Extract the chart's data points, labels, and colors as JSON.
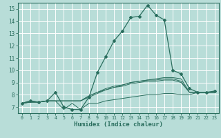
{
  "xlabel": "Humidex (Indice chaleur)",
  "bg_color": "#b8ddd8",
  "grid_color": "#ffffff",
  "line_color": "#2a6e5e",
  "xlim": [
    -0.5,
    23.5
  ],
  "ylim": [
    6.5,
    15.5
  ],
  "yticks": [
    7,
    8,
    9,
    10,
    11,
    12,
    13,
    14,
    15
  ],
  "xticks": [
    0,
    1,
    2,
    3,
    4,
    5,
    6,
    7,
    8,
    9,
    10,
    11,
    12,
    13,
    14,
    15,
    16,
    17,
    18,
    19,
    20,
    21,
    22,
    23
  ],
  "series_main": [
    7.3,
    7.5,
    7.4,
    7.5,
    8.2,
    7.0,
    6.8,
    6.8,
    7.8,
    9.8,
    11.1,
    12.4,
    13.2,
    14.3,
    14.4,
    15.3,
    14.5,
    14.1,
    10.0,
    9.7,
    8.5,
    8.2,
    8.2,
    8.3
  ],
  "series_a": [
    7.3,
    7.4,
    7.4,
    7.5,
    7.5,
    7.5,
    7.5,
    7.5,
    7.8,
    8.1,
    8.4,
    8.6,
    8.8,
    9.0,
    9.1,
    9.2,
    9.3,
    9.4,
    9.4,
    9.3,
    8.2,
    8.2,
    8.2,
    8.2
  ],
  "series_b": [
    7.3,
    7.4,
    7.4,
    7.5,
    7.5,
    7.5,
    7.5,
    7.5,
    7.9,
    8.2,
    8.5,
    8.7,
    8.8,
    9.0,
    9.1,
    9.2,
    9.2,
    9.3,
    9.3,
    9.1,
    8.2,
    8.2,
    8.2,
    8.2
  ],
  "series_c": [
    7.3,
    7.4,
    7.4,
    7.5,
    7.5,
    7.5,
    7.5,
    7.5,
    7.9,
    8.2,
    8.4,
    8.6,
    8.7,
    8.9,
    9.0,
    9.1,
    9.1,
    9.2,
    9.2,
    9.0,
    8.2,
    8.2,
    8.2,
    8.2
  ],
  "series_zigzag": [
    7.3,
    7.5,
    7.4,
    7.5,
    7.5,
    6.8,
    7.3,
    6.8,
    7.3,
    7.3,
    7.5,
    7.6,
    7.7,
    7.8,
    7.9,
    8.0,
    8.0,
    8.1,
    8.1,
    8.0,
    8.0,
    8.2,
    8.2,
    8.2
  ]
}
